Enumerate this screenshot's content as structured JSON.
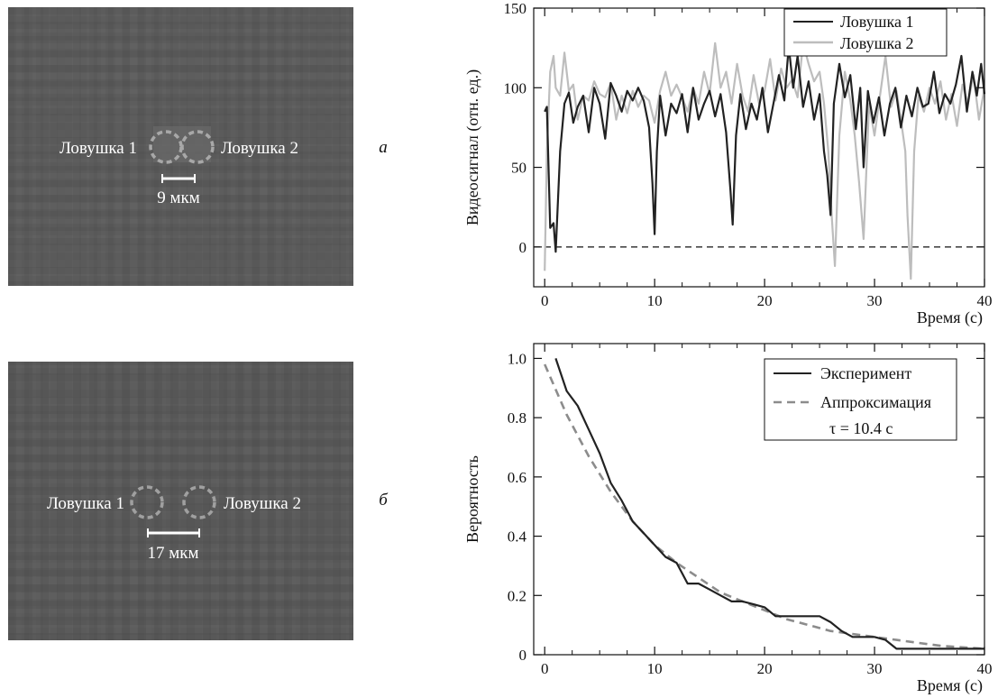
{
  "panels": [
    {
      "letter": "а",
      "trap1_label": "Ловушка 1",
      "trap2_label": "Ловушка 2",
      "scale_label": "9 мкм"
    },
    {
      "letter": "б",
      "trap1_label": "Ловушка 1",
      "trap2_label": "Ловушка 2",
      "scale_label": "17 мкм"
    }
  ],
  "colors": {
    "trap1": "#222222",
    "trap2": "#bdbdbd",
    "fit": "#8c8c8c",
    "image_bg": "#5c5c5c"
  },
  "chart_data": [
    {
      "type": "line",
      "xlabel": "Время (с)",
      "ylabel": "Видеосигнал (отн. ед.)",
      "xlim": [
        -1,
        40
      ],
      "ylim": [
        -25,
        150
      ],
      "xticks": [
        0,
        10,
        20,
        30,
        40
      ],
      "yticks": [
        0,
        50,
        100,
        150
      ],
      "minor_xtick_step": 2.5,
      "reference_line": {
        "y": 0,
        "style": "dashed"
      },
      "legend_position": "top-right",
      "series": [
        {
          "name": "Ловушка 1",
          "color": "#222222",
          "x": [
            0,
            0.2,
            0.5,
            0.8,
            1.0,
            1.4,
            1.8,
            2.2,
            2.6,
            3.0,
            3.5,
            4.0,
            4.5,
            5.0,
            5.5,
            6.0,
            6.5,
            7.0,
            7.5,
            8.0,
            8.5,
            9.0,
            9.5,
            9.8,
            10.0,
            10.2,
            10.5,
            11.0,
            11.5,
            12.0,
            12.5,
            13.0,
            13.5,
            14.0,
            14.5,
            15.0,
            15.5,
            16.0,
            16.5,
            16.9,
            17.1,
            17.4,
            17.8,
            18.3,
            18.8,
            19.3,
            19.8,
            20.3,
            20.8,
            21.3,
            21.8,
            22.2,
            22.6,
            23.0,
            23.5,
            24.0,
            24.5,
            25.0,
            25.4,
            25.7,
            26.0,
            26.3,
            26.8,
            27.3,
            27.8,
            28.3,
            28.7,
            29.0,
            29.4,
            29.9,
            30.4,
            30.9,
            31.4,
            31.9,
            32.4,
            32.9,
            33.4,
            33.9,
            34.4,
            34.9,
            35.4,
            35.9,
            36.4,
            36.9,
            37.4,
            37.9,
            38.4,
            38.9,
            39.3,
            39.7,
            40.0
          ],
          "y": [
            85,
            88,
            12,
            15,
            -3,
            60,
            90,
            97,
            78,
            88,
            95,
            72,
            100,
            90,
            68,
            103,
            95,
            85,
            98,
            92,
            100,
            92,
            75,
            40,
            8,
            60,
            95,
            70,
            90,
            84,
            96,
            72,
            100,
            80,
            90,
            98,
            82,
            96,
            72,
            35,
            14,
            70,
            96,
            74,
            90,
            80,
            100,
            72,
            90,
            108,
            92,
            126,
            100,
            120,
            88,
            104,
            80,
            96,
            60,
            45,
            20,
            90,
            115,
            94,
            108,
            74,
            100,
            50,
            98,
            78,
            94,
            70,
            90,
            100,
            75,
            95,
            82,
            100,
            88,
            90,
            110,
            84,
            96,
            90,
            102,
            120,
            85,
            110,
            95,
            115,
            96
          ]
        },
        {
          "name": "Ловушка 2",
          "color": "#bdbdbd",
          "x": [
            0,
            0.2,
            0.5,
            0.8,
            1.0,
            1.4,
            1.8,
            2.2,
            2.6,
            3.0,
            3.5,
            4.0,
            4.5,
            5.0,
            5.5,
            6.0,
            6.5,
            7.0,
            7.5,
            8.0,
            8.5,
            9.0,
            9.5,
            10.0,
            10.5,
            11.0,
            11.5,
            12.0,
            12.5,
            13.0,
            13.5,
            14.0,
            14.5,
            15.0,
            15.5,
            16.0,
            16.5,
            17.0,
            17.5,
            18.0,
            18.5,
            19.0,
            19.5,
            20.0,
            20.5,
            21.0,
            21.5,
            22.0,
            22.5,
            23.0,
            23.5,
            24.0,
            24.5,
            25.0,
            25.4,
            25.8,
            26.1,
            26.4,
            26.8,
            27.3,
            27.8,
            28.2,
            28.6,
            29.0,
            29.5,
            30.0,
            30.5,
            31.0,
            31.5,
            32.0,
            32.4,
            32.8,
            33.0,
            33.3,
            33.6,
            34.0,
            34.5,
            35.0,
            35.5,
            36.0,
            36.5,
            37.0,
            37.5,
            38.0,
            38.5,
            39.0,
            39.5,
            40.0
          ],
          "y": [
            -15,
            60,
            110,
            120,
            100,
            95,
            122,
            98,
            102,
            80,
            95,
            92,
            104,
            96,
            94,
            103,
            80,
            95,
            84,
            98,
            88,
            95,
            92,
            78,
            98,
            110,
            95,
            102,
            94,
            85,
            100,
            90,
            110,
            96,
            128,
            100,
            110,
            90,
            115,
            95,
            85,
            108,
            90,
            98,
            118,
            92,
            112,
            100,
            105,
            94,
            128,
            115,
            104,
            110,
            90,
            60,
            20,
            -12,
            70,
            110,
            92,
            70,
            40,
            5,
            90,
            70,
            95,
            120,
            88,
            98,
            80,
            60,
            20,
            -20,
            60,
            95,
            85,
            100,
            90,
            104,
            80,
            96,
            76,
            102,
            90,
            108,
            80,
            100
          ]
        }
      ]
    },
    {
      "type": "line",
      "xlabel": "Время (с)",
      "ylabel": "Вероятность",
      "xlim": [
        -1,
        40
      ],
      "ylim": [
        0,
        1.05
      ],
      "xticks": [
        0,
        10,
        20,
        30,
        40
      ],
      "yticks": [
        "0",
        "0.2",
        "0.4",
        "0.6",
        "0.8",
        "1.0"
      ],
      "minor_xtick_step": 2.5,
      "legend_position": "top-right",
      "series": [
        {
          "name": "Эксперимент",
          "color": "#222222",
          "style": "solid",
          "x": [
            1,
            2,
            3,
            4,
            5,
            6,
            7,
            8,
            9,
            10,
            11,
            12,
            13,
            14,
            15,
            16,
            17,
            18,
            19,
            20,
            21,
            22,
            23,
            24,
            25,
            26,
            27,
            28,
            29,
            30,
            31,
            32,
            33,
            34,
            35,
            36,
            37,
            38,
            39,
            40
          ],
          "y": [
            1.0,
            0.89,
            0.84,
            0.76,
            0.68,
            0.58,
            0.52,
            0.45,
            0.41,
            0.37,
            0.33,
            0.31,
            0.24,
            0.24,
            0.22,
            0.2,
            0.18,
            0.18,
            0.17,
            0.16,
            0.13,
            0.13,
            0.13,
            0.13,
            0.13,
            0.11,
            0.08,
            0.06,
            0.06,
            0.06,
            0.05,
            0.02,
            0.02,
            0.02,
            0.02,
            0.02,
            0.02,
            0.02,
            0.02,
            0.02
          ]
        },
        {
          "name": "Аппроксимация",
          "color": "#8c8c8c",
          "style": "dashed",
          "tau_label": "τ = 10.4 с",
          "x": [
            0,
            2,
            4,
            6,
            8,
            10,
            12,
            14,
            16,
            18,
            20,
            22,
            24,
            26,
            28,
            30,
            32,
            34,
            36,
            38,
            40
          ],
          "y": [
            0.98,
            0.81,
            0.67,
            0.55,
            0.45,
            0.37,
            0.31,
            0.26,
            0.21,
            0.18,
            0.15,
            0.12,
            0.1,
            0.08,
            0.07,
            0.06,
            0.05,
            0.04,
            0.03,
            0.025,
            0.02
          ]
        }
      ]
    }
  ]
}
